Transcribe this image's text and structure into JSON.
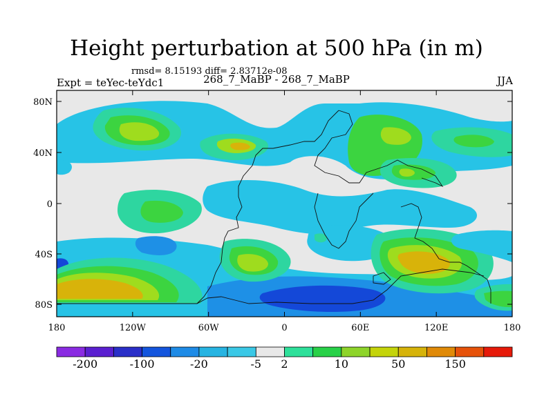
{
  "title": "Height perturbation at 500 hPa (in m)",
  "subtitle_stats": "rmsd= 8.15193  diff= 2.83712e-08",
  "left_label": "Expt = teYec-teYdc1",
  "center_label": "268_7_MaBP - 268_7_MaBP",
  "right_label": "JJA",
  "lat_ticks": [
    "80N",
    "40N",
    "0",
    "40S",
    "80S"
  ],
  "lon_ticks": [
    "180",
    "120W",
    "60W",
    "0",
    "60E",
    "120E",
    "180"
  ],
  "colorbar": {
    "labels": [
      "-200",
      "-100",
      "-20",
      "-5",
      "2",
      "10",
      "50",
      "150"
    ],
    "colors": [
      "#8a2be2",
      "#5a1fd0",
      "#2a2fc8",
      "#1455dd",
      "#1e8be6",
      "#27b4e2",
      "#3ac8e6",
      "#e8e8e8",
      "#2ee09a",
      "#28d148",
      "#8ed42a",
      "#c4d40a",
      "#d6b30a",
      "#e08a08",
      "#e6520a",
      "#e61a0a"
    ]
  },
  "palette": {
    "background": "#e8e8e8",
    "light_blue": "#27c3e6",
    "mid_blue": "#1e90e6",
    "deep_blue": "#1448d8",
    "aqua": "#2ed6a0",
    "green": "#3cd440",
    "yellow_green": "#9fdc1e",
    "gold": "#d8b30a",
    "orange": "#e39008"
  }
}
